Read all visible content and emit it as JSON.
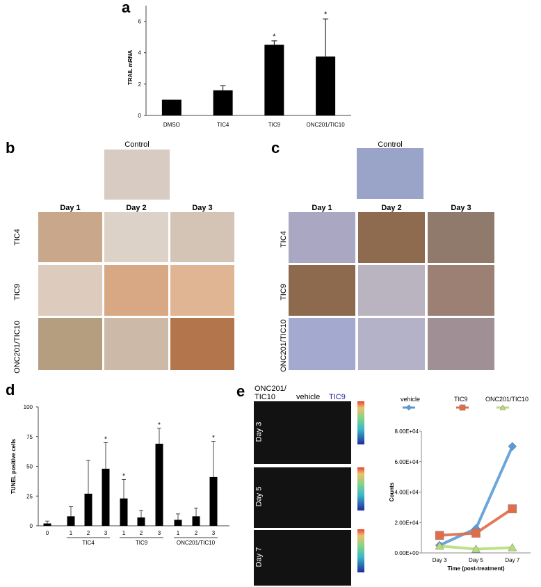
{
  "panels": {
    "a": "a",
    "b": "b",
    "c": "c",
    "d": "d",
    "e": "e"
  },
  "chart_data": [
    {
      "id": "a",
      "type": "bar",
      "title": "",
      "xlabel": "",
      "ylabel": "TRAIL mRNA",
      "categories": [
        "DMSO",
        "TIC4",
        "TIC9",
        "ONC201/TIC10"
      ],
      "values": [
        1.0,
        1.6,
        4.5,
        3.75
      ],
      "errors": [
        0.0,
        0.3,
        0.25,
        2.4
      ],
      "significance": [
        "",
        "",
        "*",
        "*"
      ],
      "ylim": [
        0,
        7
      ],
      "yticks": [
        0,
        2,
        4,
        6
      ],
      "grid": false
    },
    {
      "id": "d",
      "type": "bar",
      "title": "",
      "ylabel": "TUNEL positive cells",
      "categories": [
        "0",
        "1",
        "2",
        "3",
        "1",
        "2",
        "3",
        "1",
        "2",
        "3"
      ],
      "groups": [
        "TIC4",
        "TIC9",
        "ONC201/TIC10"
      ],
      "values": [
        2,
        8,
        27,
        48,
        23,
        7,
        69,
        5,
        8,
        41
      ],
      "errors": [
        2,
        8,
        28,
        22,
        16,
        6,
        13,
        5,
        7,
        30
      ],
      "significance": [
        "",
        "",
        "",
        "*",
        "*",
        "",
        "*",
        "",
        "",
        "*"
      ],
      "ylim": [
        0,
        100
      ],
      "yticks": [
        0,
        25,
        50,
        75,
        100
      ],
      "grid": false
    },
    {
      "id": "e",
      "type": "line",
      "title": "",
      "xlabel": "Time (post-treatment)",
      "ylabel": "Counts",
      "categories": [
        "Day 3",
        "Day 5",
        "Day 7"
      ],
      "series": [
        {
          "name": "vehicle",
          "values": [
            5000,
            16000,
            70000
          ],
          "color": "#5b9bd5"
        },
        {
          "name": "TIC9",
          "values": [
            11500,
            13000,
            29000
          ],
          "color": "#e06c4a"
        },
        {
          "name": "ONC201/TIC10",
          "values": [
            4500,
            2500,
            3500
          ],
          "color": "#b7dd7a"
        }
      ],
      "ylim": [
        0,
        80000
      ],
      "yticks": [
        "0.00E+00",
        "2.00E+04",
        "4.00E+04",
        "6.00E+04",
        "8.00E+04"
      ],
      "legend": "top"
    }
  ],
  "panel_b": {
    "control": "Control",
    "columns": [
      "Day 1",
      "Day 2",
      "Day 3"
    ],
    "rows": [
      "TIC4",
      "TIC9",
      "ONC201/TIC10"
    ]
  },
  "panel_c": {
    "control": "Control",
    "columns": [
      "Day 1",
      "Day 2",
      "Day 3"
    ],
    "rows": [
      "TIC4",
      "TIC9",
      "ONC201/TIC10"
    ]
  },
  "panel_e_images": {
    "header": [
      "ONC201/\nTIC10",
      "vehicle",
      "TIC9"
    ],
    "header_colors": [
      "#000000",
      "#000000",
      "#1a1a9e"
    ],
    "rows": [
      "Day 3",
      "Day 5",
      "Day 7"
    ]
  }
}
